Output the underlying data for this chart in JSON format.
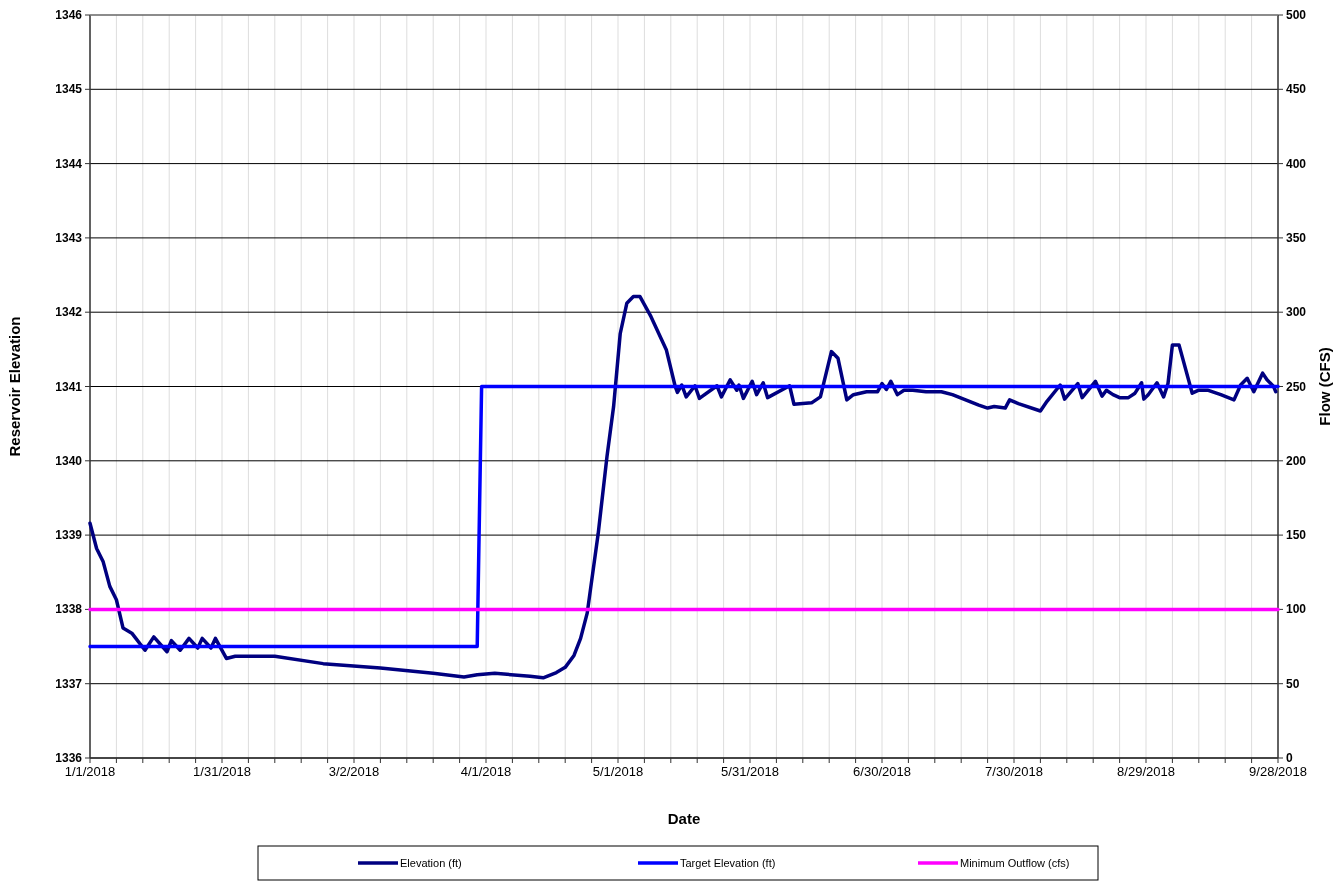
{
  "chart_data": {
    "type": "line",
    "xlabel": "Date",
    "ylabel": "Reservoir Elevation",
    "y2label": "Flow (CFS)",
    "xlim": [
      "2018-01-01",
      "2018-09-28"
    ],
    "xticks": [
      {
        "value": "2018-01-01",
        "label": "1/1/2018"
      },
      {
        "value": "2018-01-07",
        "label": null
      },
      {
        "value": "2018-01-13",
        "label": null
      },
      {
        "value": "2018-01-19",
        "label": null
      },
      {
        "value": "2018-01-25",
        "label": null
      },
      {
        "value": "2018-01-31",
        "label": "1/31/2018"
      },
      {
        "value": "2018-02-06",
        "label": null
      },
      {
        "value": "2018-02-12",
        "label": null
      },
      {
        "value": "2018-02-18",
        "label": null
      },
      {
        "value": "2018-02-24",
        "label": null
      },
      {
        "value": "2018-03-02",
        "label": "3/2/2018"
      },
      {
        "value": "2018-03-08",
        "label": null
      },
      {
        "value": "2018-03-14",
        "label": null
      },
      {
        "value": "2018-03-20",
        "label": null
      },
      {
        "value": "2018-03-26",
        "label": null
      },
      {
        "value": "2018-04-01",
        "label": "4/1/2018"
      },
      {
        "value": "2018-04-07",
        "label": null
      },
      {
        "value": "2018-04-13",
        "label": null
      },
      {
        "value": "2018-04-19",
        "label": null
      },
      {
        "value": "2018-04-25",
        "label": null
      },
      {
        "value": "2018-05-01",
        "label": "5/1/2018"
      },
      {
        "value": "2018-05-07",
        "label": null
      },
      {
        "value": "2018-05-13",
        "label": null
      },
      {
        "value": "2018-05-19",
        "label": null
      },
      {
        "value": "2018-05-25",
        "label": null
      },
      {
        "value": "2018-05-31",
        "label": "5/31/2018"
      },
      {
        "value": "2018-06-06",
        "label": null
      },
      {
        "value": "2018-06-12",
        "label": null
      },
      {
        "value": "2018-06-18",
        "label": null
      },
      {
        "value": "2018-06-24",
        "label": null
      },
      {
        "value": "2018-06-30",
        "label": "6/30/2018"
      },
      {
        "value": "2018-07-06",
        "label": null
      },
      {
        "value": "2018-07-12",
        "label": null
      },
      {
        "value": "2018-07-18",
        "label": null
      },
      {
        "value": "2018-07-24",
        "label": null
      },
      {
        "value": "2018-07-30",
        "label": "7/30/2018"
      },
      {
        "value": "2018-08-05",
        "label": null
      },
      {
        "value": "2018-08-11",
        "label": null
      },
      {
        "value": "2018-08-17",
        "label": null
      },
      {
        "value": "2018-08-23",
        "label": null
      },
      {
        "value": "2018-08-29",
        "label": "8/29/2018"
      },
      {
        "value": "2018-09-04",
        "label": null
      },
      {
        "value": "2018-09-10",
        "label": null
      },
      {
        "value": "2018-09-16",
        "label": null
      },
      {
        "value": "2018-09-22",
        "label": null
      },
      {
        "value": "2018-09-28",
        "label": "9/28/2018"
      }
    ],
    "ylim": [
      1336,
      1346
    ],
    "yticks": [
      1336,
      1337,
      1338,
      1339,
      1340,
      1341,
      1342,
      1343,
      1344,
      1345,
      1346
    ],
    "y2lim": [
      0,
      500
    ],
    "y2ticks": [
      0,
      50,
      100,
      150,
      200,
      250,
      300,
      350,
      400,
      450,
      500
    ],
    "grid": true,
    "legend": "bottom",
    "marker": "none",
    "line_style": "solid",
    "series": [
      {
        "name": "Elevation (ft)",
        "color": "#000080",
        "x": [
          "2018-01-01",
          "2018-01-02T12:00",
          "2018-01-04",
          "2018-01-05T12:00",
          "2018-01-07",
          "2018-01-08T12:00",
          "2018-01-10T12:00",
          "2018-01-13T12:00",
          "2018-01-15T12:00",
          "2018-01-18T12:00",
          "2018-01-19T12:00",
          "2018-01-21T12:00",
          "2018-01-23T12:00",
          "2018-01-25T12:00",
          "2018-01-26T12:00",
          "2018-01-28T12:00",
          "2018-01-29T12:00",
          "2018-02-01",
          "2018-02-03",
          "2018-02-12",
          "2018-02-23",
          "2018-03-08",
          "2018-03-20",
          "2018-03-27",
          "2018-03-30",
          "2018-04-03",
          "2018-04-11",
          "2018-04-14",
          "2018-04-17",
          "2018-04-19",
          "2018-04-21",
          "2018-04-22T12:00",
          "2018-04-24",
          "2018-04-26T12:00",
          "2018-04-28T12:00",
          "2018-04-30",
          "2018-05-01T12:00",
          "2018-05-03",
          "2018-05-04T12:00",
          "2018-05-06",
          "2018-05-08T12:00",
          "2018-05-12",
          "2018-05-14",
          "2018-05-14T12:00",
          "2018-05-15T12:00",
          "2018-05-16T12:00",
          "2018-05-18T12:00",
          "2018-05-19T12:00",
          "2018-05-23T12:00",
          "2018-05-24T12:00",
          "2018-05-26T12:00",
          "2018-05-28",
          "2018-05-28T12:00",
          "2018-05-29T12:00",
          "2018-05-31T12:00",
          "2018-06-01T12:00",
          "2018-06-03",
          "2018-06-04",
          "2018-06-09",
          "2018-06-10",
          "2018-06-14",
          "2018-06-16",
          "2018-06-18T12:00",
          "2018-06-20",
          "2018-06-22",
          "2018-06-23T12:00",
          "2018-06-26T12:00",
          "2018-06-29",
          "2018-06-30",
          "2018-07-01",
          "2018-07-02",
          "2018-07-03T12:00",
          "2018-07-05",
          "2018-07-07",
          "2018-07-10",
          "2018-07-13T12:00",
          "2018-07-16",
          "2018-07-19",
          "2018-07-22",
          "2018-07-24",
          "2018-07-25T12:00",
          "2018-07-28",
          "2018-07-29",
          "2018-07-31",
          "2018-08-05",
          "2018-08-06T12:00",
          "2018-08-09T12:00",
          "2018-08-10T12:00",
          "2018-08-13T12:00",
          "2018-08-14T12:00",
          "2018-08-17T12:00",
          "2018-08-19",
          "2018-08-20",
          "2018-08-21T12:00",
          "2018-08-23",
          "2018-08-25",
          "2018-08-26T12:00",
          "2018-08-28",
          "2018-08-28T12:00",
          "2018-08-29T12:00",
          "2018-08-31T12:00",
          "2018-09-02",
          "2018-09-03",
          "2018-09-04",
          "2018-09-05T12:00",
          "2018-09-08T12:00",
          "2018-09-10",
          "2018-09-12",
          "2018-09-15",
          "2018-09-18",
          "2018-09-19T12:00",
          "2018-09-21",
          "2018-09-22T12:00",
          "2018-09-24T12:00",
          "2018-09-25T12:00",
          "2018-09-27",
          "2018-09-27T12:00"
        ],
        "values": [
          1339.16,
          1338.82,
          1338.64,
          1338.31,
          1338.13,
          1337.75,
          1337.68,
          1337.45,
          1337.63,
          1337.43,
          1337.58,
          1337.45,
          1337.61,
          1337.48,
          1337.61,
          1337.48,
          1337.61,
          1337.34,
          1337.37,
          1337.37,
          1337.27,
          1337.21,
          1337.14,
          1337.09,
          1337.12,
          1337.14,
          1337.1,
          1337.08,
          1337.15,
          1337.22,
          1337.38,
          1337.61,
          1337.95,
          1339.02,
          1340.06,
          1340.73,
          1341.71,
          1342.12,
          1342.21,
          1342.21,
          1341.94,
          1341.49,
          1341.0,
          1340.92,
          1341.02,
          1340.86,
          1341.01,
          1340.84,
          1341.01,
          1340.86,
          1341.09,
          1340.95,
          1341.02,
          1340.84,
          1341.07,
          1340.89,
          1341.05,
          1340.85,
          1341.01,
          1340.76,
          1340.78,
          1340.86,
          1341.47,
          1341.38,
          1340.82,
          1340.89,
          1340.93,
          1340.93,
          1341.04,
          1340.96,
          1341.07,
          1340.89,
          1340.95,
          1340.95,
          1340.93,
          1340.93,
          1340.89,
          1340.82,
          1340.75,
          1340.71,
          1340.73,
          1340.71,
          1340.82,
          1340.77,
          1340.67,
          1340.8,
          1341.02,
          1340.83,
          1341.04,
          1340.85,
          1341.07,
          1340.87,
          1340.95,
          1340.89,
          1340.85,
          1340.85,
          1340.91,
          1341.05,
          1340.83,
          1340.89,
          1341.05,
          1340.86,
          1341.04,
          1341.56,
          1341.56,
          1340.91,
          1340.95,
          1340.95,
          1340.89,
          1340.82,
          1341.02,
          1341.11,
          1340.93,
          1341.18,
          1341.09,
          1341.0,
          1340.93
        ]
      },
      {
        "name": "Target Elevation (ft)",
        "color": "#0000ff",
        "x": [
          "2018-01-01",
          "2018-03-30",
          "2018-03-31",
          "2018-09-28"
        ],
        "values": [
          1337.5,
          1337.5,
          1341,
          1341
        ]
      },
      {
        "name": "Minimum Outflow (cfs)",
        "color": "#ff00ff",
        "axis": "y2",
        "x": [
          "2018-01-01",
          "2018-09-28"
        ],
        "values": [
          100,
          100
        ]
      }
    ]
  }
}
